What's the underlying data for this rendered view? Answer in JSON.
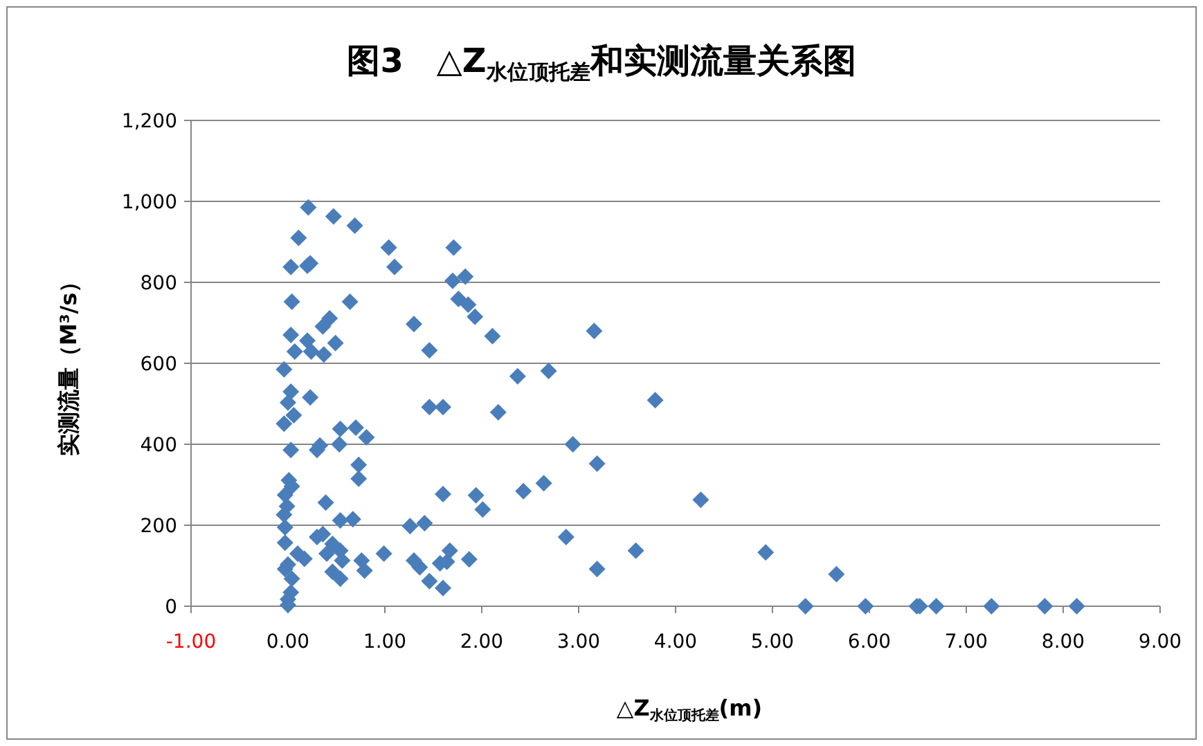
{
  "chart_data": {
    "type": "scatter",
    "title": "图3　△Z$_{水位顶托差}$和实测流量关系图",
    "xlabel": "△Z$_{水位顶托差}$(m)",
    "ylabel": "实测流量（M³/s）",
    "x": [
      0.21,
      0.47,
      0.69,
      0.11,
      1.04,
      1.71,
      0.03,
      0.2,
      0.23,
      1.1,
      1.7,
      1.83,
      1.76,
      1.86,
      1.93,
      2.11,
      0.04,
      0.64,
      0.43,
      0.36,
      1.3,
      1.46,
      3.16,
      0.03,
      0.2,
      0.49,
      0.07,
      0.24,
      0.37,
      -0.04,
      2.37,
      2.69,
      3.79,
      0.03,
      0.0,
      0.23,
      0.06,
      2.17,
      1.46,
      1.6,
      -0.04,
      0.54,
      0.7,
      0.53,
      0.81,
      0.03,
      0.3,
      0.33,
      2.94,
      0.73,
      3.19,
      0.73,
      0.01,
      0.04,
      -0.03,
      1.6,
      1.94,
      2.01,
      2.43,
      2.64,
      4.26,
      -0.01,
      0.39,
      0.67,
      0.54,
      1.26,
      1.41,
      2.87,
      -0.04,
      -0.03,
      -0.03,
      0.36,
      0.3,
      0.46,
      0.54,
      0.56,
      0.99,
      0.0,
      -0.03,
      0.04,
      0.03,
      0.0,
      0.0,
      1.3,
      1.36,
      1.67,
      1.46,
      1.87,
      1.57,
      1.6,
      1.64,
      3.19,
      3.59,
      4.93,
      5.66,
      5.34,
      5.96,
      6.49,
      6.52,
      6.69,
      7.26,
      7.81,
      8.14,
      0.76,
      0.79,
      0.54,
      0.46,
      0.4,
      0.1,
      0.17
    ],
    "values": [
      985,
      963,
      940,
      910,
      886,
      886,
      838,
      841,
      847,
      838,
      804,
      814,
      759,
      745,
      715,
      667,
      752,
      752,
      711,
      691,
      697,
      632,
      680,
      670,
      656,
      650,
      629,
      629,
      622,
      585,
      568,
      581,
      509,
      530,
      503,
      516,
      472,
      479,
      492,
      492,
      451,
      438,
      441,
      400,
      417,
      386,
      386,
      397,
      400,
      349,
      352,
      315,
      311,
      296,
      275,
      277,
      274,
      239,
      284,
      304,
      263,
      247,
      256,
      215,
      212,
      198,
      205,
      171,
      226,
      195,
      157,
      178,
      171,
      154,
      137,
      113,
      130,
      103,
      92,
      68,
      34,
      17,
      3,
      113,
      96,
      137,
      62,
      116,
      106,
      45,
      110,
      92,
      137,
      133,
      79,
      0,
      0,
      0,
      0,
      0,
      0,
      0,
      0,
      113,
      88,
      68,
      85,
      130,
      130,
      117
    ],
    "color": "#4a7ebb",
    "marker": "diamond",
    "xlim": [
      -1,
      9
    ],
    "xticks": [
      {
        "value": -1,
        "label": "-1.00"
      },
      {
        "value": 0,
        "label": "0.00"
      },
      {
        "value": 1,
        "label": "1.00"
      },
      {
        "value": 2,
        "label": "2.00"
      },
      {
        "value": 3,
        "label": "3.00"
      },
      {
        "value": 4,
        "label": "4.00"
      },
      {
        "value": 5,
        "label": "5.00"
      },
      {
        "value": 6,
        "label": "6.00"
      },
      {
        "value": 7,
        "label": "7.00"
      },
      {
        "value": 8,
        "label": "8.00"
      },
      {
        "value": 9,
        "label": "9.00"
      }
    ],
    "ylim": [
      0,
      1200
    ],
    "yticks": [
      0,
      {
        "value": 200,
        "label": "200"
      },
      {
        "value": 400,
        "label": "400"
      },
      {
        "value": 600,
        "label": "600"
      },
      {
        "value": 800,
        "label": "800"
      },
      {
        "value": 1000,
        "label": "1,000"
      },
      {
        "value": 1200,
        "label": "1,200"
      }
    ],
    "grid": "y"
  }
}
